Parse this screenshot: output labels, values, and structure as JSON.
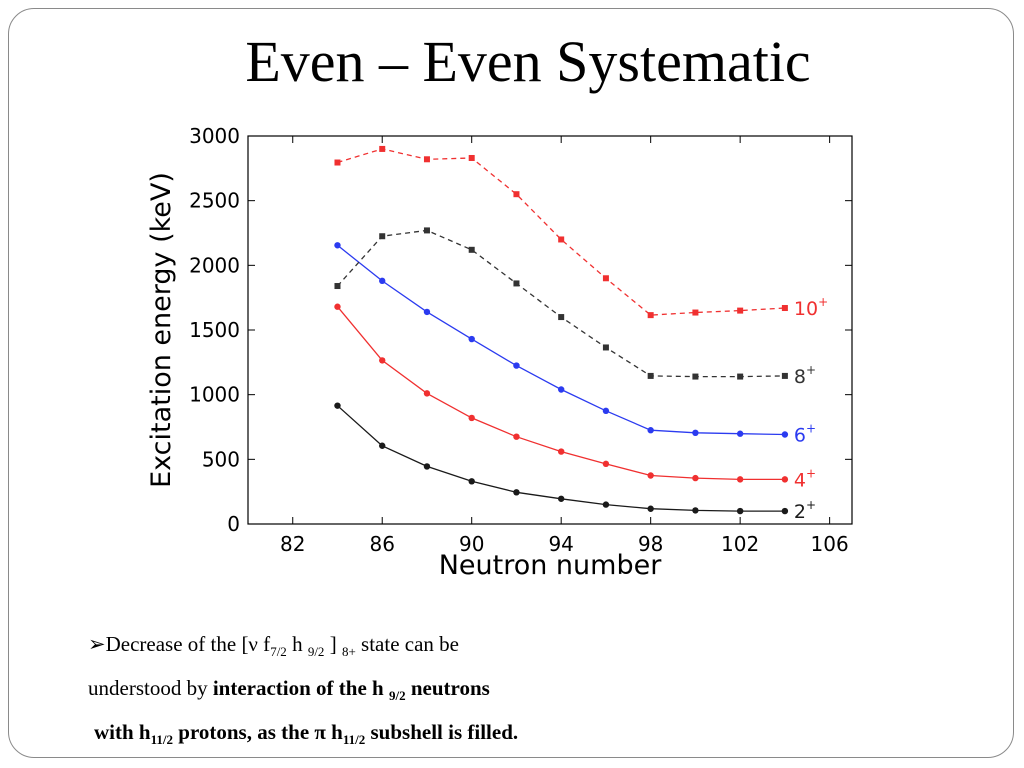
{
  "slide": {
    "title": "Even – Even Systematic"
  },
  "bullet": {
    "marker": "➢",
    "line1_a": "Decrease of the [ν f",
    "line1_sub1": "7/2",
    "line1_b": " h ",
    "line1_sub2": "9/2",
    "line1_c": " ] ",
    "line1_sub3": "8+",
    "line1_d": "   state  can be",
    "line2_a": "understood by ",
    "line2_b": "interaction  of the h ",
    "line2_sub": "9/2",
    "line2_c": "  neutrons",
    "line3_a": "with h",
    "line3_sub1": "11/2",
    "line3_b": "  protons, as the  π h",
    "line3_sub2": "11/2",
    "line3_c": "  subshell is filled."
  },
  "chart_data": {
    "type": "line",
    "xlabel": "Neutron number",
    "ylabel": "Excitation energy (keV)",
    "xlim": [
      80,
      107
    ],
    "ylim": [
      0,
      3000
    ],
    "xticks": [
      "82",
      "86",
      "90",
      "94",
      "98",
      "102",
      "106"
    ],
    "yticks": [
      "0",
      "500",
      "1000",
      "1500",
      "2000",
      "2500",
      "3000"
    ],
    "grid": false,
    "x": [
      84,
      86,
      88,
      90,
      92,
      94,
      96,
      98,
      100,
      102,
      104
    ],
    "series": [
      {
        "name": "2",
        "label_sup": "+",
        "color": "#1a1a1a",
        "dashed": false,
        "values": [
          915,
          605,
          445,
          330,
          245,
          195,
          150,
          118,
          105,
          100,
          100
        ]
      },
      {
        "name": "4",
        "label_sup": "+",
        "color": "#f03030",
        "dashed": false,
        "values": [
          1680,
          1265,
          1010,
          820,
          675,
          560,
          465,
          375,
          355,
          345,
          345
        ]
      },
      {
        "name": "6",
        "label_sup": "+",
        "color": "#2b3bf0",
        "dashed": false,
        "values": [
          2155,
          1880,
          1640,
          1430,
          1225,
          1040,
          875,
          725,
          705,
          698,
          692
        ]
      },
      {
        "name": "8",
        "label_sup": "+",
        "color": "#333333",
        "dashed": true,
        "values": [
          1840,
          2225,
          2270,
          2120,
          1860,
          1600,
          1365,
          1145,
          1140,
          1140,
          1145
        ]
      },
      {
        "name": "10",
        "label_sup": "+",
        "color": "#f03030",
        "dashed": true,
        "values": [
          2795,
          2900,
          2820,
          2830,
          2550,
          2200,
          1900,
          1615,
          1635,
          1650,
          1670
        ]
      }
    ]
  }
}
